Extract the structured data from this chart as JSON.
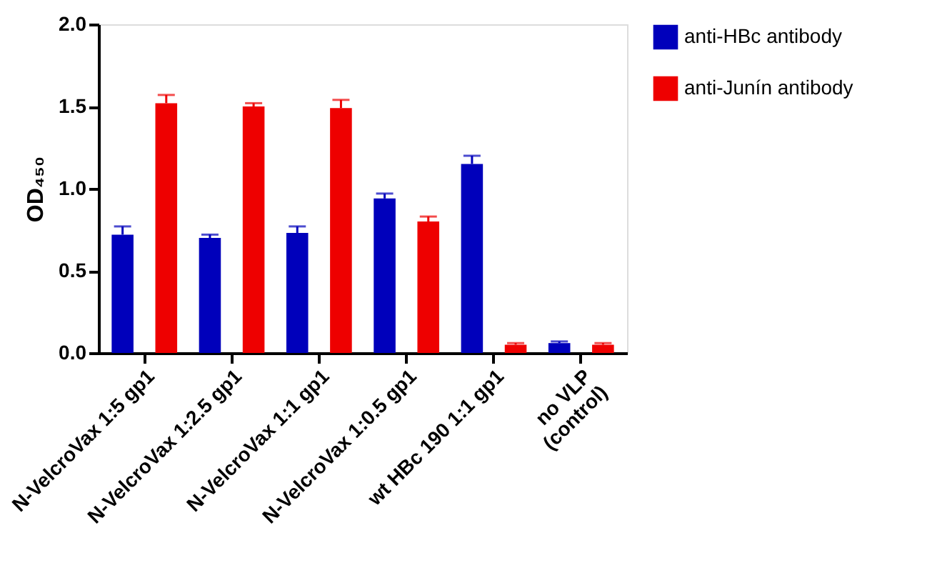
{
  "chart_data": {
    "type": "bar",
    "categories": [
      "N-VelcroVax 1:5 gp1",
      "N-VelcroVax 1:2.5 gp1",
      "N-VelcroVax 1:1 gp1",
      "N-VelcroVax 1:0.5 gp1",
      "wt HBc 190 1:1 gp1",
      "no VLP\n(control)"
    ],
    "ylabel": "OD₄₅₀",
    "ylim": [
      0,
      2.0
    ],
    "yticks": [
      {
        "value": 0,
        "label": "0.0"
      },
      0.5,
      {
        "value": 1,
        "label": "1.0"
      },
      1.5,
      {
        "value": 2,
        "label": "2.0"
      }
    ],
    "series": [
      {
        "name": "anti-HBc antibody",
        "color": "#0000bb",
        "values": [
          0.72,
          0.7,
          0.73,
          0.94,
          1.15,
          0.06
        ],
        "errors": [
          [
            0.72,
            0.77
          ],
          [
            0.7,
            0.72
          ],
          [
            0.73,
            0.77
          ],
          [
            0.94,
            0.97
          ],
          [
            1.15,
            1.2
          ],
          [
            0.06,
            0.07
          ]
        ]
      },
      {
        "name": "anti-Junín antibody",
        "color": "#ee0000",
        "values": [
          1.52,
          1.5,
          1.49,
          0.8,
          0.05,
          0.05
        ],
        "errors": [
          [
            1.52,
            1.57
          ],
          [
            1.5,
            1.52
          ],
          [
            1.49,
            1.54
          ],
          [
            0.8,
            0.83
          ],
          [
            0.05,
            0.06
          ],
          [
            0.05,
            0.06
          ]
        ]
      }
    ],
    "legend": "top right",
    "grid": false
  }
}
